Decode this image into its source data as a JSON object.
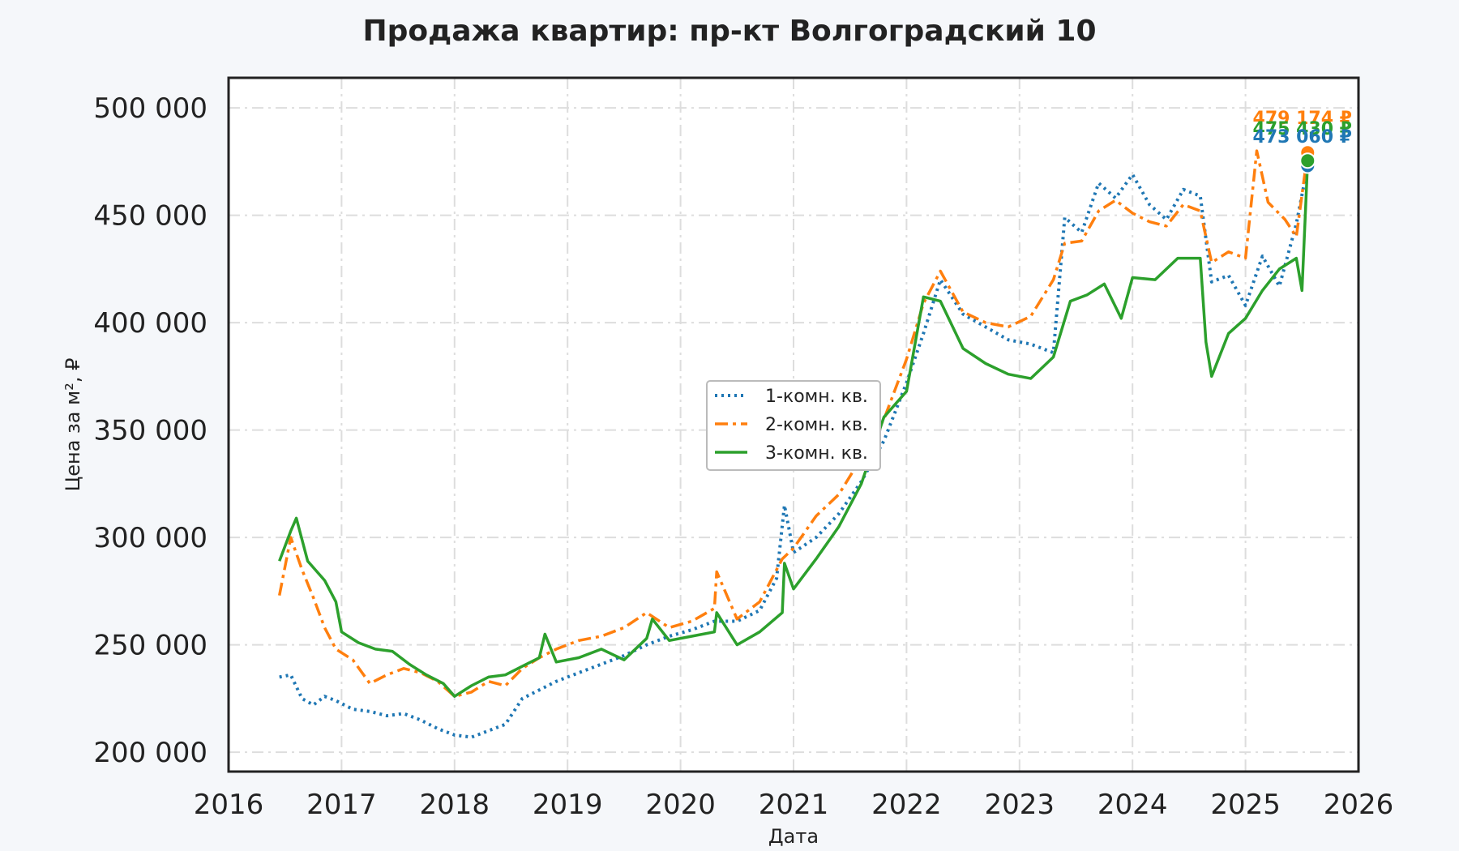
{
  "chart_data": {
    "type": "line",
    "title": "Продажа квартир: пр-кт Волгоградский 10",
    "xlabel": "Дата",
    "ylabel": "Цена за м², ₽",
    "xlim": [
      2016.0,
      2026.0
    ],
    "ylim": [
      191000,
      514000
    ],
    "x_ticks": [
      2016,
      2017,
      2018,
      2019,
      2020,
      2021,
      2022,
      2023,
      2024,
      2025,
      2026
    ],
    "y_ticks": [
      200000,
      250000,
      300000,
      350000,
      400000,
      450000,
      500000
    ],
    "y_tick_labels": [
      "200 000",
      "250 000",
      "300 000",
      "350 000",
      "400 000",
      "450 000",
      "500 000"
    ],
    "grid": true,
    "legend_position": "center",
    "series": [
      {
        "name": "1-комн. кв.",
        "color": "#1f77b4",
        "style": "dotted",
        "x": [
          2016.45,
          2016.55,
          2016.65,
          2016.75,
          2016.85,
          2016.95,
          2017.1,
          2017.25,
          2017.4,
          2017.55,
          2017.7,
          2017.85,
          2018.0,
          2018.15,
          2018.3,
          2018.45,
          2018.6,
          2018.75,
          2018.9,
          2019.1,
          2019.3,
          2019.5,
          2019.7,
          2019.9,
          2020.1,
          2020.3,
          2020.5,
          2020.7,
          2020.85,
          2020.92,
          2021.0,
          2021.2,
          2021.4,
          2021.6,
          2021.8,
          2022.0,
          2022.15,
          2022.3,
          2022.5,
          2022.7,
          2022.9,
          2023.1,
          2023.3,
          2023.4,
          2023.55,
          2023.7,
          2023.85,
          2024.0,
          2024.15,
          2024.3,
          2024.45,
          2024.6,
          2024.7,
          2024.85,
          2025.0,
          2025.15,
          2025.3,
          2025.45,
          2025.55
        ],
        "values": [
          235000,
          236000,
          225000,
          222000,
          226000,
          224000,
          220000,
          219000,
          217000,
          218000,
          215000,
          211000,
          208000,
          207000,
          210000,
          213000,
          225000,
          229000,
          233000,
          237000,
          241000,
          245000,
          250000,
          254000,
          257000,
          261000,
          261000,
          266000,
          281000,
          315000,
          293000,
          300000,
          311000,
          326000,
          345000,
          372000,
          395000,
          420000,
          404000,
          398000,
          392000,
          390000,
          386000,
          449000,
          442000,
          465000,
          458000,
          469000,
          455000,
          448000,
          462000,
          459000,
          419000,
          422000,
          408000,
          431000,
          417000,
          446000,
          473060
        ]
      },
      {
        "name": "2-комн. кв.",
        "color": "#ff7f0e",
        "style": "dashdot",
        "x": [
          2016.45,
          2016.55,
          2016.65,
          2016.75,
          2016.85,
          2016.95,
          2017.1,
          2017.25,
          2017.4,
          2017.55,
          2017.7,
          2017.85,
          2018.0,
          2018.15,
          2018.3,
          2018.45,
          2018.6,
          2018.75,
          2018.9,
          2019.1,
          2019.3,
          2019.5,
          2019.7,
          2019.9,
          2020.1,
          2020.3,
          2020.32,
          2020.5,
          2020.7,
          2020.9,
          2021.0,
          2021.2,
          2021.4,
          2021.6,
          2021.8,
          2022.0,
          2022.15,
          2022.3,
          2022.5,
          2022.7,
          2022.9,
          2023.1,
          2023.3,
          2023.4,
          2023.55,
          2023.7,
          2023.85,
          2024.0,
          2024.15,
          2024.3,
          2024.45,
          2024.6,
          2024.7,
          2024.85,
          2025.0,
          2025.1,
          2025.2,
          2025.35,
          2025.45,
          2025.55
        ],
        "values": [
          273000,
          300000,
          285000,
          272000,
          258000,
          248000,
          243000,
          232000,
          236000,
          239000,
          237000,
          233000,
          226000,
          228000,
          233000,
          231000,
          239000,
          244000,
          248000,
          252000,
          254000,
          258000,
          265000,
          258000,
          261000,
          267000,
          284000,
          262000,
          270000,
          290000,
          295000,
          310000,
          320000,
          337000,
          355000,
          383000,
          409000,
          424000,
          405000,
          400000,
          398000,
          403000,
          420000,
          437000,
          438000,
          452000,
          457000,
          451000,
          447000,
          445000,
          455000,
          452000,
          428000,
          433000,
          430000,
          480000,
          456000,
          448000,
          440000,
          479174
        ]
      },
      {
        "name": "3-комн. кв.",
        "color": "#2ca02c",
        "style": "solid",
        "x": [
          2016.45,
          2016.55,
          2016.6,
          2016.7,
          2016.85,
          2016.95,
          2017.0,
          2017.15,
          2017.3,
          2017.45,
          2017.6,
          2017.75,
          2017.9,
          2018.0,
          2018.15,
          2018.3,
          2018.45,
          2018.6,
          2018.75,
          2018.8,
          2018.9,
          2019.1,
          2019.3,
          2019.5,
          2019.7,
          2019.75,
          2019.9,
          2020.1,
          2020.3,
          2020.32,
          2020.5,
          2020.7,
          2020.9,
          2020.92,
          2021.0,
          2021.2,
          2021.4,
          2021.6,
          2021.8,
          2022.0,
          2022.15,
          2022.3,
          2022.5,
          2022.7,
          2022.9,
          2023.1,
          2023.3,
          2023.45,
          2023.6,
          2023.75,
          2023.9,
          2024.0,
          2024.2,
          2024.4,
          2024.6,
          2024.65,
          2024.7,
          2024.85,
          2025.0,
          2025.15,
          2025.3,
          2025.45,
          2025.5,
          2025.55
        ],
        "values": [
          289000,
          303000,
          309000,
          289000,
          280000,
          270000,
          256000,
          251000,
          248000,
          247000,
          241000,
          236000,
          232000,
          226000,
          231000,
          235000,
          236000,
          240000,
          244000,
          255000,
          242000,
          244000,
          248000,
          243000,
          253000,
          262000,
          252000,
          254000,
          256000,
          265000,
          250000,
          256000,
          265000,
          288000,
          276000,
          290000,
          305000,
          325000,
          356000,
          368000,
          412000,
          410000,
          388000,
          381000,
          376000,
          374000,
          384000,
          410000,
          413000,
          418000,
          402000,
          421000,
          420000,
          430000,
          430000,
          391000,
          375000,
          395000,
          402000,
          415000,
          425000,
          430000,
          415000,
          475430
        ]
      }
    ],
    "end_labels": [
      {
        "text": "479 174 ₽",
        "color": "#ff7f0e",
        "value": 479174
      },
      {
        "text": "475 430 ₽",
        "color": "#2ca02c",
        "value": 475430
      },
      {
        "text": "473 060 ₽",
        "color": "#1f77b4",
        "value": 473060
      }
    ]
  }
}
